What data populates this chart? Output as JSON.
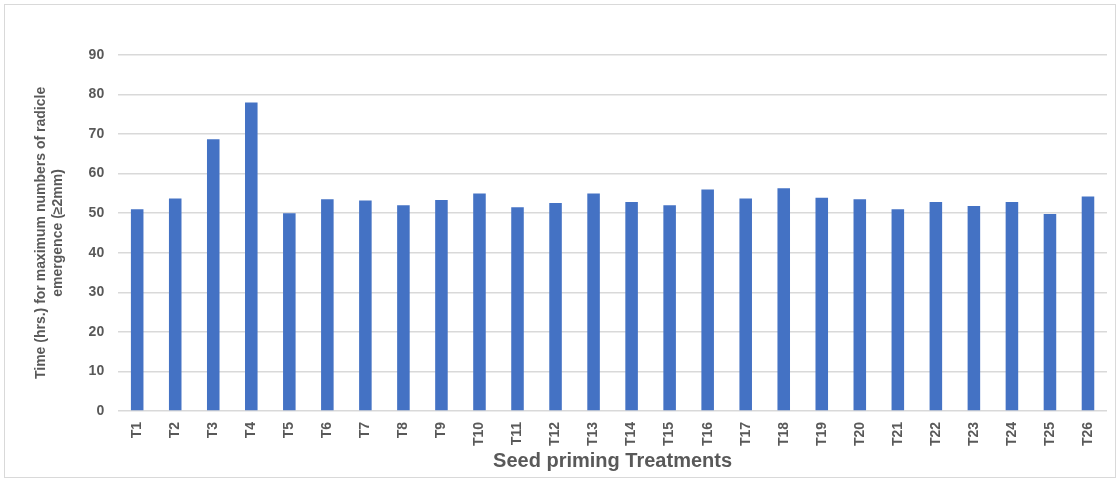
{
  "chart_data": {
    "type": "bar",
    "xlabel": "Seed priming Treatments",
    "ylabel": "Time (hrs.) for maximum numbers of radicle emergence (≥2mm)",
    "categories": [
      "T1",
      "T2",
      "T3",
      "T4",
      "T5",
      "T6",
      "T7",
      "T8",
      "T9",
      "T10",
      "T11",
      "T12",
      "T13",
      "T14",
      "T15",
      "T16",
      "T17",
      "T18",
      "T19",
      "T20",
      "T21",
      "T22",
      "T23",
      "T24",
      "T25",
      "T26"
    ],
    "values": [
      51,
      53.7,
      68.7,
      78,
      50,
      53.5,
      53.2,
      52,
      53.3,
      55,
      51.5,
      52.6,
      55,
      52.8,
      52,
      56,
      53.7,
      56.3,
      53.9,
      53.5,
      51,
      52.8,
      51.8,
      52.8,
      49.8,
      54.2
    ],
    "color": "#4472c4",
    "ylim": [
      0,
      90
    ],
    "yticks": [
      0,
      10,
      20,
      30,
      40,
      50,
      60,
      70,
      80,
      90
    ],
    "grid": "y"
  }
}
